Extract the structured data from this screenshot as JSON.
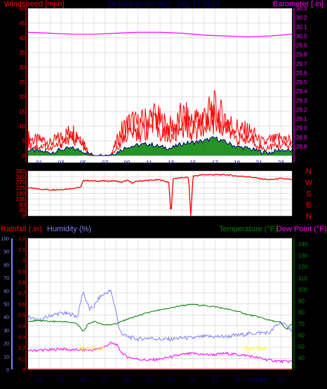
{
  "header": {
    "left_title": "Windspeed [mph]",
    "center_title": "24 hour graph day : July 17 2014",
    "right_title": "Barometer [.in]"
  },
  "colors": {
    "background": "#000000",
    "white_panel": "#ffffff",
    "wind_gust": "#ff0000",
    "wind_avg": "#008000",
    "wind_dir": "#ff0000",
    "barometer": "#ff00ff",
    "navy_title": "#000080",
    "rain": "#ff0000",
    "humidity": "#8080ff",
    "temperature": "#008000",
    "dewpoint": "#ff00ff",
    "sun_marker": "#ffff00",
    "grid": "#c0c0c0"
  },
  "bottom_header": {
    "rain_label": "Rainfall (.in)",
    "humidity_label": "Humidity (%)",
    "temp_label": "Temperature (°F)",
    "dewpoint_label": "Dew Point (°F)"
  },
  "sun": {
    "rise_label": "Sun Rise",
    "set_label": "Sun Set",
    "rise_hour": 5.8,
    "set_hour": 20.6
  },
  "hour_labels": [
    "01",
    "03",
    "05",
    "07",
    "09",
    "11",
    "13",
    "15",
    "17",
    "19",
    "21",
    "23"
  ],
  "bottom_hour_labels": [
    "01",
    "03",
    "05",
    "07",
    "09",
    "11",
    "13",
    "15",
    "17",
    "19",
    "Sun Set",
    "21",
    "23"
  ],
  "chart_data": [
    {
      "type": "line",
      "title": "24 hour graph day : July 17 2014",
      "ylabel": "Windspeed [mph]",
      "y2label": "Barometer [.in]",
      "x_unit": "hour",
      "xlim": [
        0,
        24
      ],
      "ylim": [
        0,
        50
      ],
      "y_ticks": [
        0,
        5,
        10,
        15,
        20,
        25,
        30,
        35,
        40,
        45,
        50
      ],
      "y2lim": [
        28.7,
        30.3
      ],
      "y2_ticks": [
        28.8,
        28.9,
        29.0,
        29.1,
        29.2,
        29.3,
        29.4,
        29.5,
        29.6,
        29.7,
        29.8,
        29.9,
        30.0,
        30.1,
        30.2,
        30.3
      ],
      "series": [
        {
          "name": "Windspeed",
          "axis": "left",
          "hours": [
            0,
            0.5,
            1,
            1.5,
            2,
            2.5,
            3,
            3.5,
            4,
            4.5,
            5,
            5.5,
            6,
            6.5,
            7,
            7.5,
            8,
            8.5,
            9,
            9.5,
            10,
            10.5,
            11,
            11.5,
            12,
            12.5,
            13,
            13.5,
            14,
            14.5,
            15,
            15.5,
            16,
            16.5,
            17,
            17.5,
            18,
            18.5,
            19,
            19.5,
            20,
            20.5,
            21,
            21.5,
            22,
            22.5,
            23,
            23.5,
            24
          ],
          "values": [
            6,
            5,
            5,
            5,
            4,
            5,
            6,
            7,
            8,
            7,
            5,
            1,
            0,
            0,
            0,
            0,
            4,
            8,
            10,
            11,
            10,
            11,
            12,
            13,
            11,
            10,
            9,
            10,
            13,
            12,
            11,
            12,
            13,
            14,
            15,
            13,
            12,
            10,
            9,
            8,
            8,
            7,
            5,
            4,
            5,
            5,
            6,
            5,
            5
          ]
        },
        {
          "name": "Wind Gust",
          "axis": "left",
          "hours": [
            0,
            0.5,
            1,
            1.5,
            2,
            2.5,
            3,
            3.5,
            4,
            4.5,
            5,
            5.5,
            6,
            6.5,
            7,
            7.5,
            8,
            8.5,
            9,
            9.5,
            10,
            10.5,
            11,
            11.5,
            12,
            12.5,
            13,
            13.5,
            14,
            14.5,
            15,
            15.5,
            16,
            16.5,
            17,
            17.5,
            18,
            18.5,
            19,
            19.5,
            20,
            20.5,
            21,
            21.5,
            22,
            22.5,
            23,
            23.5,
            24
          ],
          "values": [
            4,
            3,
            3,
            3,
            2,
            3,
            4,
            5,
            6,
            5,
            3,
            0,
            0,
            0,
            0,
            0,
            2,
            5,
            7,
            8,
            7,
            8,
            9,
            10,
            8,
            7,
            6,
            7,
            10,
            9,
            8,
            9,
            10,
            11,
            12,
            10,
            9,
            7,
            6,
            5,
            5,
            5,
            3,
            2,
            3,
            3,
            4,
            3,
            3
          ]
        },
        {
          "name": "Wind Avg",
          "axis": "left",
          "hours": [
            0,
            1,
            2,
            3,
            4,
            5,
            6,
            7,
            8,
            9,
            10,
            11,
            12,
            13,
            14,
            15,
            16,
            17,
            18,
            19,
            20,
            21,
            22,
            23,
            24
          ],
          "values": [
            2,
            1.5,
            1,
            2,
            2.5,
            1.5,
            0,
            0,
            1,
            3,
            3.5,
            4,
            3,
            2.5,
            4,
            4.5,
            5,
            6,
            4.5,
            3,
            2.5,
            1.5,
            1,
            2,
            1.5
          ]
        },
        {
          "name": "Barometer",
          "axis": "right",
          "hours": [
            0,
            2,
            4,
            6,
            8,
            10,
            12,
            14,
            16,
            18,
            20,
            22,
            24
          ],
          "values": [
            30.04,
            30.03,
            30.02,
            30.02,
            30.03,
            30.04,
            30.04,
            30.03,
            30.01,
            30.0,
            29.99,
            30.0,
            30.02
          ]
        }
      ]
    },
    {
      "type": "line",
      "ylabel": "Wind direction",
      "xlim": [
        0,
        24
      ],
      "ylim": [
        0,
        360
      ],
      "y_ticks": [
        0,
        45,
        90,
        135,
        180,
        225,
        270,
        315,
        360
      ],
      "compass_labels": [
        "N",
        "W",
        "S",
        "E",
        "N"
      ],
      "series": [
        {
          "name": "Wind Direction",
          "hours": [
            0,
            1,
            2,
            3,
            4,
            4.8,
            5,
            5.2,
            6,
            7,
            8,
            8.5,
            9,
            9.5,
            10,
            11,
            12,
            12.8,
            13,
            13.2,
            14,
            14.6,
            14.8,
            15,
            16,
            17,
            18,
            19,
            20,
            21,
            22,
            23,
            24
          ],
          "values": [
            225,
            215,
            210,
            212,
            220,
            230,
            280,
            285,
            280,
            280,
            280,
            270,
            285,
            265,
            280,
            285,
            290,
            270,
            0,
            300,
            305,
            310,
            0,
            320,
            330,
            330,
            330,
            320,
            315,
            300,
            290,
            300,
            290
          ]
        }
      ]
    },
    {
      "type": "line",
      "ylabel": "Rainfall (.in)",
      "y2label": "Temperature (°F)",
      "xlim": [
        0,
        24
      ],
      "rain_ylim": [
        0,
        1.2
      ],
      "rain_ticks": [
        0,
        0.1,
        0.2,
        0.3,
        0.4,
        0.5,
        0.6,
        0.7,
        0.8,
        0.9,
        1,
        1.1,
        1.2
      ],
      "humidity_ylim": [
        0,
        100
      ],
      "humidity_ticks": [
        0,
        10,
        20,
        30,
        40,
        50,
        60,
        70,
        80,
        90,
        100
      ],
      "temp_ylim": [
        30,
        145
      ],
      "temp_ticks": [
        40,
        50,
        60,
        70,
        80,
        90,
        100,
        110,
        120,
        130,
        140
      ],
      "series": [
        {
          "name": "Rainfall",
          "axis": "rain",
          "hours": [
            0,
            24
          ],
          "values": [
            0,
            0
          ]
        },
        {
          "name": "Humidity",
          "axis": "humidity",
          "hours": [
            0,
            1,
            2,
            3,
            4,
            4.5,
            5,
            5.3,
            5.6,
            6,
            6.5,
            7,
            7.5,
            8,
            8.3,
            8.6,
            9,
            10,
            11,
            12,
            13,
            14,
            15,
            16,
            17,
            18,
            19,
            20,
            21,
            22,
            22.5,
            23,
            23.5,
            24
          ],
          "values": [
            40,
            37,
            41,
            43,
            42,
            40,
            60,
            52,
            46,
            48,
            55,
            58,
            60,
            45,
            30,
            27,
            25,
            23,
            24,
            23,
            23,
            24,
            24,
            25,
            25,
            25,
            26,
            27,
            28,
            28,
            33,
            36,
            33,
            30
          ]
        },
        {
          "name": "Temperature",
          "axis": "temp",
          "hours": [
            0,
            1,
            2,
            3,
            4,
            4.5,
            5,
            5.5,
            6,
            7,
            8,
            9,
            10,
            11,
            12,
            13,
            14,
            15,
            16,
            17,
            18,
            19,
            20,
            21,
            22,
            23,
            23.5,
            24
          ],
          "values": [
            72,
            73,
            72,
            72,
            71,
            70,
            63,
            70,
            72,
            69,
            70,
            74,
            77,
            80,
            82,
            84,
            86,
            87,
            86,
            85,
            83,
            81,
            78,
            76,
            73,
            71,
            65,
            70
          ]
        },
        {
          "name": "Dew Point",
          "axis": "temp",
          "hours": [
            0,
            1,
            2,
            3,
            4,
            5,
            6,
            7,
            7.5,
            8,
            8.5,
            9,
            10,
            11,
            12,
            13,
            14,
            15,
            16,
            17,
            18,
            19,
            20,
            21,
            22,
            23,
            24
          ],
          "values": [
            46,
            47,
            47,
            48,
            47,
            47,
            47,
            50,
            53,
            52,
            45,
            41,
            39,
            38,
            39,
            41,
            43,
            44,
            43,
            43,
            44,
            43,
            42,
            40,
            38,
            37,
            37
          ]
        }
      ]
    }
  ]
}
